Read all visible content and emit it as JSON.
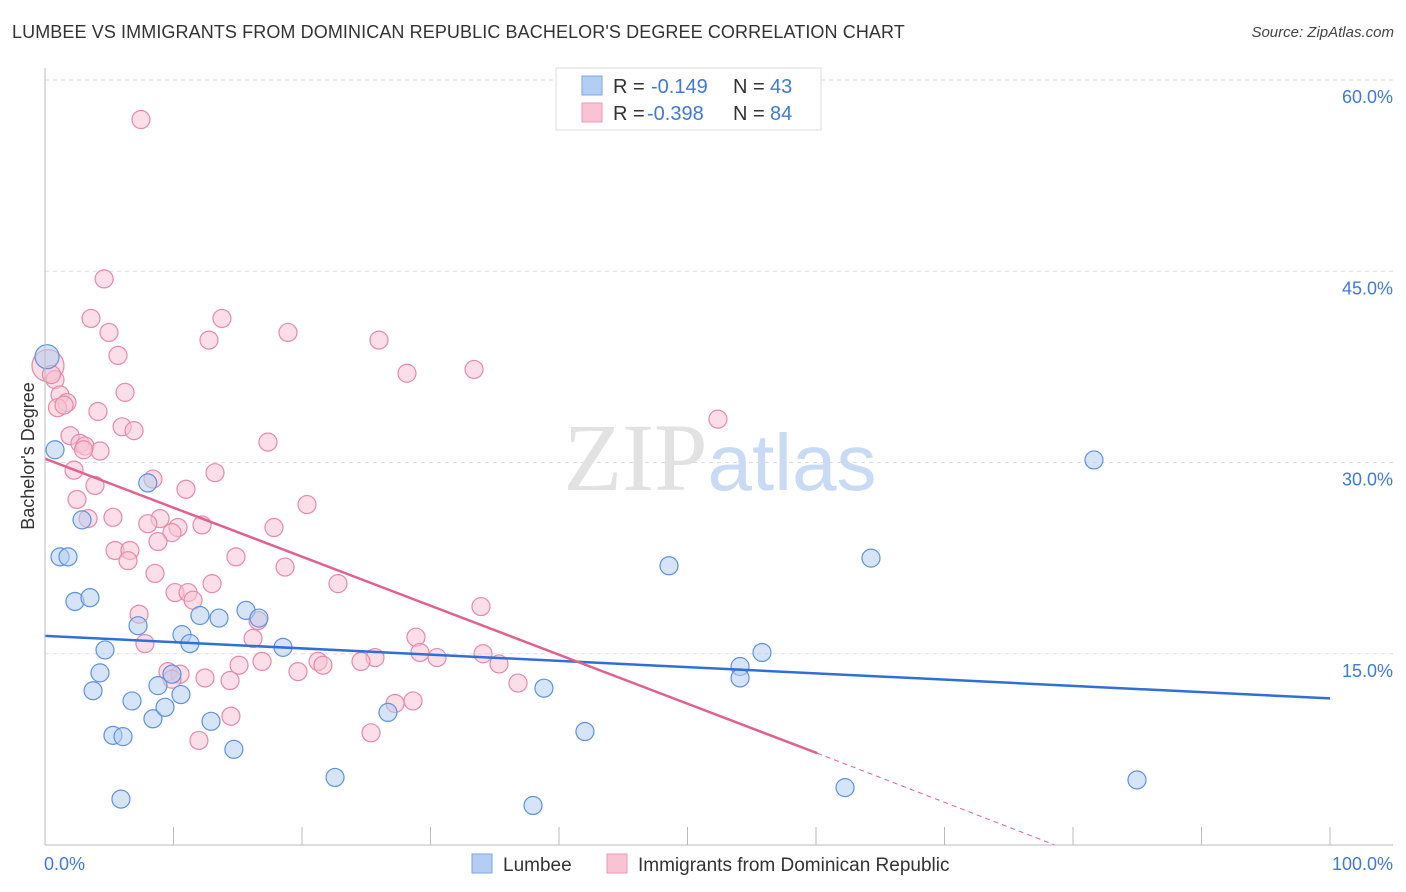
{
  "title": "LUMBEE VS IMMIGRANTS FROM DOMINICAN REPUBLIC BACHELOR'S DEGREE CORRELATION CHART",
  "source": "Source: ZipAtlas.com",
  "watermark": "ZIPatlas",
  "chart_data": {
    "type": "scatter",
    "title": "LUMBEE VS IMMIGRANTS FROM DOMINICAN REPUBLIC BACHELOR'S DEGREE CORRELATION CHART",
    "xlabel": "",
    "ylabel": "Bachelor's Degree",
    "xlim": [
      0,
      100
    ],
    "ylim": [
      0,
      60
    ],
    "x_tick_labels": [
      "0.0%",
      "100.0%"
    ],
    "y_ticks": [
      15,
      30,
      45,
      60
    ],
    "y_tick_labels": [
      "15.0%",
      "30.0%",
      "45.0%",
      "60.0%"
    ],
    "grid": true,
    "legend_top": [
      {
        "r_label": "R =",
        "r": "-0.149",
        "n_label": "N =",
        "n": "43"
      },
      {
        "r_label": "R =",
        "r": "-0.398",
        "n_label": "N =",
        "n": "84"
      }
    ],
    "colors": {
      "lumbee_fill": "#b4cdf2",
      "lumbee_stroke": "#5e92dc",
      "lumbee_line": "#2f6fd6",
      "dom_fill": "#f8c3d3",
      "dom_stroke": "#e889a8",
      "dom_line": "#e0628e"
    },
    "series": [
      {
        "name": "Lumbee",
        "trend": {
          "x": [
            0,
            100
          ],
          "y": [
            16.4,
            11.5
          ]
        },
        "points": [
          [
            0.16,
            38.3
          ],
          [
            0.78,
            31.0
          ],
          [
            1.17,
            22.6
          ],
          [
            1.79,
            22.6
          ],
          [
            2.33,
            19.1
          ],
          [
            3.5,
            19.4
          ],
          [
            2.88,
            25.5
          ],
          [
            8.0,
            28.4
          ],
          [
            4.67,
            15.3
          ],
          [
            4.28,
            13.5
          ],
          [
            3.74,
            12.1
          ],
          [
            6.77,
            11.3
          ],
          [
            5.29,
            8.6
          ],
          [
            6.07,
            8.5
          ],
          [
            5.91,
            3.6
          ],
          [
            7.24,
            17.2
          ],
          [
            8.4,
            9.9
          ],
          [
            8.79,
            12.5
          ],
          [
            9.34,
            10.8
          ],
          [
            9.88,
            13.4
          ],
          [
            10.58,
            11.8
          ],
          [
            10.66,
            16.5
          ],
          [
            11.28,
            15.8
          ],
          [
            12.06,
            18.0
          ],
          [
            12.92,
            9.7
          ],
          [
            13.54,
            17.8
          ],
          [
            14.7,
            7.5
          ],
          [
            15.64,
            18.4
          ],
          [
            16.65,
            17.8
          ],
          [
            18.52,
            15.5
          ],
          [
            22.57,
            5.3
          ],
          [
            26.69,
            10.4
          ],
          [
            37.98,
            3.1
          ],
          [
            38.83,
            12.3
          ],
          [
            42.02,
            8.9
          ],
          [
            48.56,
            21.9
          ],
          [
            54.09,
            14.0
          ],
          [
            54.09,
            13.1
          ],
          [
            55.8,
            15.1
          ],
          [
            62.26,
            4.5
          ],
          [
            64.28,
            22.5
          ],
          [
            81.63,
            30.2
          ],
          [
            84.98,
            5.1
          ]
        ]
      },
      {
        "name": "Immigrants from Dominican Republic",
        "trend": {
          "x": [
            0,
            60.1
          ],
          "y": [
            30.3,
            7.2
          ],
          "dashed_to": {
            "x": 78.6,
            "y": 0
          }
        },
        "points": [
          [
            7.47,
            56.9
          ],
          [
            4.6,
            44.4
          ],
          [
            3.58,
            41.3
          ],
          [
            13.77,
            41.3
          ],
          [
            4.98,
            40.2
          ],
          [
            18.91,
            40.2
          ],
          [
            12.76,
            39.6
          ],
          [
            25.99,
            39.6
          ],
          [
            5.68,
            38.4
          ],
          [
            0.23,
            37.6
          ],
          [
            28.17,
            37.0
          ],
          [
            33.39,
            37.3
          ],
          [
            0.78,
            36.5
          ],
          [
            6.23,
            35.5
          ],
          [
            1.17,
            35.3
          ],
          [
            1.71,
            34.7
          ],
          [
            0.97,
            34.3
          ],
          [
            1.48,
            34.5
          ],
          [
            4.12,
            34.0
          ],
          [
            52.37,
            33.4
          ],
          [
            6.0,
            32.8
          ],
          [
            6.93,
            32.5
          ],
          [
            1.95,
            32.1
          ],
          [
            2.72,
            31.5
          ],
          [
            3.11,
            31.3
          ],
          [
            4.28,
            30.9
          ],
          [
            17.35,
            31.6
          ],
          [
            2.26,
            29.4
          ],
          [
            13.23,
            29.2
          ],
          [
            8.4,
            28.7
          ],
          [
            3.89,
            28.2
          ],
          [
            10.97,
            27.9
          ],
          [
            2.49,
            27.1
          ],
          [
            20.39,
            26.7
          ],
          [
            3.35,
            25.6
          ],
          [
            5.29,
            25.7
          ],
          [
            8.95,
            25.6
          ],
          [
            8.0,
            25.2
          ],
          [
            10.35,
            24.9
          ],
          [
            12.22,
            25.1
          ],
          [
            17.82,
            24.9
          ],
          [
            9.88,
            24.5
          ],
          [
            8.79,
            23.8
          ],
          [
            5.45,
            23.1
          ],
          [
            6.61,
            23.1
          ],
          [
            14.86,
            22.6
          ],
          [
            6.46,
            22.3
          ],
          [
            18.68,
            21.8
          ],
          [
            8.56,
            21.3
          ],
          [
            13.0,
            20.5
          ],
          [
            22.8,
            20.5
          ],
          [
            10.12,
            19.8
          ],
          [
            11.13,
            19.8
          ],
          [
            11.52,
            19.2
          ],
          [
            33.93,
            18.7
          ],
          [
            7.32,
            18.1
          ],
          [
            16.58,
            17.6
          ],
          [
            7.78,
            15.8
          ],
          [
            16.19,
            16.2
          ],
          [
            28.87,
            16.3
          ],
          [
            29.18,
            15.1
          ],
          [
            30.51,
            14.7
          ],
          [
            25.68,
            14.7
          ],
          [
            24.59,
            14.4
          ],
          [
            21.25,
            14.4
          ],
          [
            21.63,
            14.1
          ],
          [
            34.09,
            15.0
          ],
          [
            35.33,
            14.2
          ],
          [
            15.1,
            14.1
          ],
          [
            16.89,
            14.4
          ],
          [
            19.69,
            13.6
          ],
          [
            9.57,
            13.6
          ],
          [
            10.51,
            13.4
          ],
          [
            9.88,
            13.0
          ],
          [
            12.45,
            13.1
          ],
          [
            14.4,
            12.9
          ],
          [
            36.81,
            12.7
          ],
          [
            27.24,
            11.1
          ],
          [
            28.64,
            11.3
          ],
          [
            14.47,
            10.1
          ],
          [
            11.98,
            8.2
          ],
          [
            25.37,
            8.8
          ],
          [
            0.5,
            36.9
          ],
          [
            3.0,
            31.0
          ]
        ]
      }
    ],
    "legend_bottom": [
      "Lumbee",
      "Immigrants from Dominican Republic"
    ]
  }
}
